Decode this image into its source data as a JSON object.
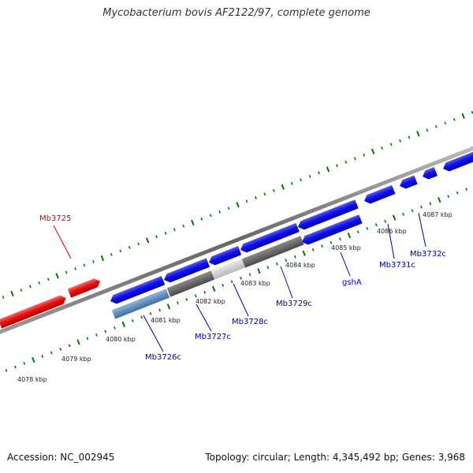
{
  "title": "Mycobacterium bovis AF2122/97, complete genome",
  "footer": {
    "accession": "Accession: NC_002945",
    "summary": "Topology: circular; Length: 4,345,492 bp; Genes: 3,968"
  },
  "kbp_labels": [
    "4078 kbp",
    "4079 kbp",
    "4080 kbp",
    "4081 kbp",
    "4082 kbp",
    "4083 kbp",
    "4084 kbp",
    "4085 kbp",
    "4086 kbp",
    "4087 kbp"
  ],
  "genes": [
    {
      "id": "Mb3725",
      "label": "Mb3725"
    },
    {
      "id": "Mb3726c",
      "label": "Mb3726c"
    },
    {
      "id": "Mb3727c",
      "label": "Mb3727c"
    },
    {
      "id": "Mb3728c",
      "label": "Mb3728c"
    },
    {
      "id": "Mb3729c",
      "label": "Mb3729c"
    },
    {
      "id": "gshA",
      "label": "gshA"
    },
    {
      "id": "Mb3731c",
      "label": "Mb3731c"
    },
    {
      "id": "Mb3732c",
      "label": "Mb3732c"
    }
  ],
  "colors": {
    "forward_gene": "#ee0000",
    "reverse_gene": "#0000ee",
    "forward_label": "#dd0000",
    "reverse_label": "#0000aa",
    "backbone": "#888888",
    "tick": "#007700"
  }
}
